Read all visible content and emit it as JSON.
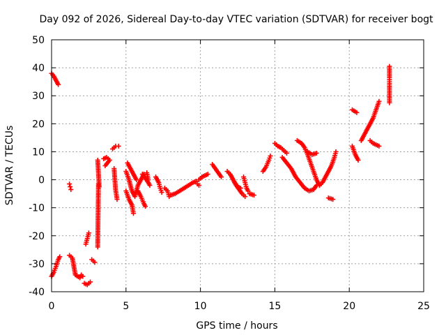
{
  "chart_data": {
    "type": "scatter",
    "title": "Day 092 of 2026, Sidereal Day-to-day VTEC variation (SDTVAR) for receiver bogt",
    "xlabel": "GPS time / hours",
    "ylabel": "SDTVAR / TECUs",
    "xlim": [
      0,
      25
    ],
    "ylim": [
      -40,
      50
    ],
    "xticks": [
      0,
      5,
      10,
      15,
      20,
      25
    ],
    "yticks": [
      -40,
      -30,
      -20,
      -10,
      0,
      10,
      20,
      30,
      40,
      50
    ],
    "xtick_labels": [
      "0",
      "5",
      "10",
      "15",
      "20",
      "25"
    ],
    "ytick_labels": [
      "-40",
      "-30",
      "-20",
      "-10",
      "0",
      "10",
      "20",
      "30",
      "40",
      "50"
    ],
    "grid": true,
    "marker": "+",
    "color": "#ff0000",
    "series": [
      {
        "name": "arc-01",
        "points": [
          [
            0.0,
            38.0
          ],
          [
            0.15,
            37.0
          ],
          [
            0.3,
            35.5
          ],
          [
            0.45,
            34.0
          ]
        ]
      },
      {
        "name": "arc-02",
        "points": [
          [
            0.0,
            -34.5
          ],
          [
            0.15,
            -33.0
          ],
          [
            0.3,
            -31.0
          ],
          [
            0.45,
            -28.5
          ],
          [
            0.55,
            -27.5
          ]
        ]
      },
      {
        "name": "arc-03",
        "points": [
          [
            1.2,
            -1.5
          ],
          [
            1.25,
            -2.5
          ],
          [
            1.3,
            -3.5
          ]
        ]
      },
      {
        "name": "arc-04",
        "points": [
          [
            1.2,
            -27.0
          ],
          [
            1.4,
            -28.0
          ],
          [
            1.6,
            -34.0
          ],
          [
            1.9,
            -35.0
          ],
          [
            2.0,
            -34.0
          ],
          [
            2.1,
            -34.5
          ]
        ]
      },
      {
        "name": "arc-05",
        "points": [
          [
            2.2,
            -37.0
          ],
          [
            2.4,
            -37.5
          ],
          [
            2.6,
            -36.5
          ]
        ]
      },
      {
        "name": "arc-06",
        "points": [
          [
            2.3,
            -23.0
          ],
          [
            2.4,
            -21.0
          ],
          [
            2.5,
            -19.0
          ]
        ]
      },
      {
        "name": "arc-07",
        "points": [
          [
            2.7,
            -28.5
          ],
          [
            2.9,
            -29.5
          ]
        ]
      },
      {
        "name": "arc-08",
        "points": [
          [
            3.1,
            -24.0
          ],
          [
            3.15,
            -1.5
          ],
          [
            3.2,
            -2.5
          ],
          [
            3.1,
            7.0
          ]
        ]
      },
      {
        "name": "arc-09",
        "points": [
          [
            3.5,
            7.5
          ],
          [
            3.7,
            8.0
          ],
          [
            3.9,
            7.0
          ],
          [
            3.6,
            5.0
          ]
        ]
      },
      {
        "name": "arc-10",
        "points": [
          [
            4.1,
            11.0
          ],
          [
            4.3,
            12.0
          ],
          [
            4.5,
            12.0
          ]
        ]
      },
      {
        "name": "arc-11",
        "points": [
          [
            4.2,
            4.0
          ],
          [
            4.3,
            -3.5
          ],
          [
            4.4,
            -7.0
          ]
        ]
      },
      {
        "name": "arc-12",
        "points": [
          [
            5.0,
            3.0
          ],
          [
            5.2,
            0.0
          ],
          [
            5.4,
            -4.0
          ],
          [
            5.6,
            -6.0
          ],
          [
            5.8,
            -2.0
          ],
          [
            6.0,
            0.0
          ],
          [
            6.2,
            2.0
          ]
        ]
      },
      {
        "name": "arc-13",
        "points": [
          [
            5.0,
            -4.0
          ],
          [
            5.2,
            -7.0
          ],
          [
            5.4,
            -9.0
          ],
          [
            5.5,
            -12.0
          ]
        ]
      },
      {
        "name": "arc-14",
        "points": [
          [
            5.1,
            6.0
          ],
          [
            5.3,
            4.0
          ],
          [
            5.5,
            2.0
          ],
          [
            5.7,
            0.0
          ]
        ]
      },
      {
        "name": "arc-15",
        "points": [
          [
            5.8,
            -4.0
          ],
          [
            6.0,
            -6.0
          ],
          [
            6.2,
            -8.5
          ],
          [
            6.3,
            -9.5
          ]
        ]
      },
      {
        "name": "arc-16",
        "points": [
          [
            6.1,
            2.0
          ],
          [
            6.3,
            0.5
          ],
          [
            6.5,
            -1.0
          ],
          [
            6.6,
            -2.0
          ]
        ]
      },
      {
        "name": "arc-17",
        "points": [
          [
            6.4,
            2.5
          ],
          [
            6.5,
            0.0
          ]
        ]
      },
      {
        "name": "arc-18",
        "points": [
          [
            7.0,
            1.0
          ],
          [
            7.2,
            -1.0
          ],
          [
            7.3,
            -3.0
          ],
          [
            7.4,
            -4.5
          ]
        ]
      },
      {
        "name": "arc-19",
        "points": [
          [
            7.6,
            -3.0
          ],
          [
            7.8,
            -4.0
          ],
          [
            7.9,
            -6.0
          ]
        ]
      },
      {
        "name": "arc-20",
        "points": [
          [
            8.0,
            -5.5
          ],
          [
            8.3,
            -5.0
          ],
          [
            8.6,
            -4.0
          ],
          [
            8.9,
            -3.0
          ],
          [
            9.2,
            -2.0
          ],
          [
            9.5,
            -1.0
          ],
          [
            9.7,
            -0.5
          ]
        ]
      },
      {
        "name": "arc-21",
        "points": [
          [
            9.9,
            0.0
          ],
          [
            10.1,
            1.0
          ],
          [
            10.3,
            1.5
          ],
          [
            10.5,
            2.0
          ]
        ]
      },
      {
        "name": "arc-22",
        "points": [
          [
            9.8,
            -1.5
          ],
          [
            9.9,
            -2.0
          ]
        ]
      },
      {
        "name": "arc-23",
        "points": [
          [
            10.8,
            5.5
          ],
          [
            11.0,
            4.0
          ],
          [
            11.2,
            2.5
          ],
          [
            11.4,
            1.0
          ]
        ]
      },
      {
        "name": "arc-24",
        "points": [
          [
            11.8,
            3.0
          ],
          [
            12.0,
            2.0
          ],
          [
            12.2,
            0.0
          ],
          [
            12.4,
            -2.0
          ],
          [
            12.6,
            -3.5
          ],
          [
            12.8,
            -5.0
          ],
          [
            13.0,
            -6.0
          ]
        ]
      },
      {
        "name": "arc-25",
        "points": [
          [
            12.3,
            -1.0
          ],
          [
            12.5,
            -2.5
          ],
          [
            12.7,
            -3.0
          ]
        ]
      },
      {
        "name": "arc-26",
        "points": [
          [
            12.9,
            1.0
          ],
          [
            13.0,
            -1.0
          ],
          [
            13.1,
            -3.0
          ],
          [
            13.2,
            -4.0
          ]
        ]
      },
      {
        "name": "arc-27",
        "points": [
          [
            13.3,
            -5.0
          ],
          [
            13.6,
            -5.5
          ]
        ]
      },
      {
        "name": "arc-28",
        "points": [
          [
            14.2,
            3.0
          ],
          [
            14.4,
            4.5
          ],
          [
            14.6,
            7.0
          ],
          [
            14.7,
            8.5
          ]
        ]
      },
      {
        "name": "arc-29",
        "points": [
          [
            15.0,
            13.0
          ],
          [
            15.2,
            12.0
          ],
          [
            15.4,
            11.5
          ],
          [
            15.6,
            10.5
          ],
          [
            15.8,
            9.5
          ]
        ]
      },
      {
        "name": "arc-30",
        "points": [
          [
            15.5,
            8.0
          ],
          [
            15.8,
            6.0
          ],
          [
            16.1,
            4.0
          ],
          [
            16.4,
            1.0
          ],
          [
            16.7,
            -1.0
          ],
          [
            17.0,
            -3.0
          ],
          [
            17.3,
            -4.0
          ],
          [
            17.6,
            -3.5
          ],
          [
            17.8,
            -2.0
          ]
        ]
      },
      {
        "name": "arc-31",
        "points": [
          [
            16.5,
            14.0
          ],
          [
            16.8,
            13.0
          ],
          [
            17.0,
            11.5
          ],
          [
            17.2,
            9.0
          ],
          [
            17.4,
            6.0
          ],
          [
            17.6,
            3.0
          ],
          [
            17.8,
            0.0
          ],
          [
            18.0,
            -2.0
          ]
        ]
      },
      {
        "name": "arc-32",
        "points": [
          [
            17.2,
            10.0
          ],
          [
            17.5,
            9.0
          ],
          [
            17.8,
            9.5
          ]
        ]
      },
      {
        "name": "arc-33",
        "points": [
          [
            18.0,
            -2.0
          ],
          [
            18.2,
            -1.0
          ],
          [
            18.4,
            1.0
          ],
          [
            18.6,
            3.0
          ],
          [
            18.8,
            5.0
          ],
          [
            19.0,
            8.0
          ],
          [
            19.1,
            10.0
          ]
        ]
      },
      {
        "name": "arc-34",
        "points": [
          [
            18.6,
            -6.5
          ],
          [
            18.9,
            -7.0
          ]
        ]
      },
      {
        "name": "arc-35",
        "points": [
          [
            20.2,
            12.0
          ],
          [
            20.4,
            9.0
          ],
          [
            20.6,
            7.0
          ]
        ]
      },
      {
        "name": "arc-36",
        "points": [
          [
            20.2,
            25.0
          ],
          [
            20.5,
            24.0
          ]
        ]
      },
      {
        "name": "arc-37",
        "points": [
          [
            20.8,
            14.0
          ],
          [
            21.0,
            16.0
          ],
          [
            21.2,
            18.0
          ],
          [
            21.4,
            20.0
          ],
          [
            21.6,
            22.0
          ],
          [
            21.8,
            25.0
          ],
          [
            22.0,
            28.0
          ]
        ]
      },
      {
        "name": "arc-38",
        "points": [
          [
            21.4,
            14.0
          ],
          [
            21.6,
            13.0
          ],
          [
            21.8,
            12.5
          ],
          [
            22.0,
            12.0
          ]
        ]
      },
      {
        "name": "arc-39",
        "points": [
          [
            22.7,
            27.5
          ],
          [
            22.7,
            34.5
          ],
          [
            22.7,
            36.5
          ],
          [
            22.7,
            40.5
          ]
        ]
      }
    ]
  }
}
